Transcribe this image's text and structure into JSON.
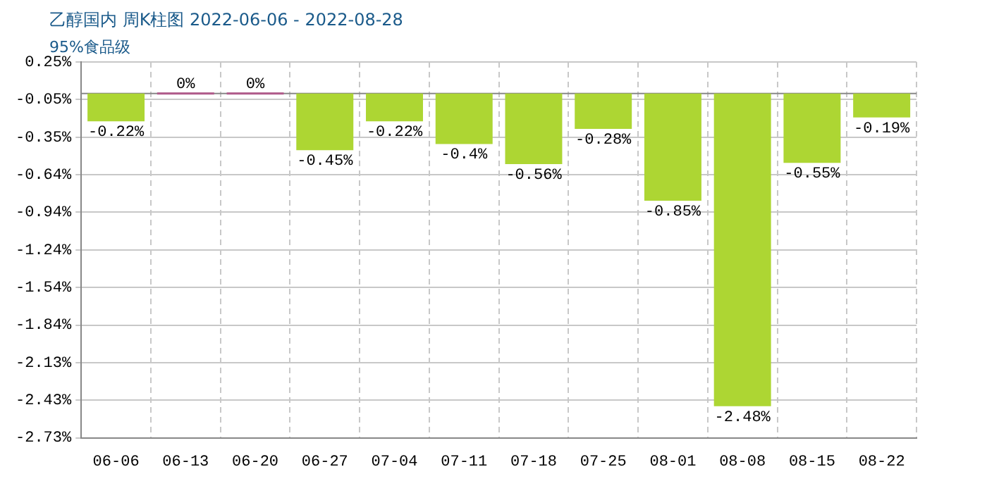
{
  "chart_data": {
    "type": "bar",
    "title": "乙醇国内 周K柱图 2022-06-06 - 2022-08-28",
    "subtitle": "95%食品级",
    "categories": [
      "06-06",
      "06-13",
      "06-20",
      "06-27",
      "07-04",
      "07-11",
      "07-18",
      "07-25",
      "08-01",
      "08-08",
      "08-15",
      "08-22"
    ],
    "values": [
      -0.22,
      0,
      0,
      -0.45,
      -0.22,
      -0.4,
      -0.56,
      -0.28,
      -0.85,
      -2.48,
      -0.55,
      -0.19
    ],
    "value_labels": [
      "-0.22%",
      "0%",
      "0%",
      "-0.45%",
      "-0.22%",
      "-0.4%",
      "-0.56%",
      "-0.28%",
      "-0.85%",
      "-2.48%",
      "-0.55%",
      "-0.19%"
    ],
    "colors": [
      "#add633",
      "#b05a8a",
      "#b05a8a",
      "#add633",
      "#add633",
      "#add633",
      "#add633",
      "#add633",
      "#add633",
      "#add633",
      "#add633",
      "#add633"
    ],
    "ylim": [
      -2.73,
      0.25
    ],
    "yticks": [
      {
        "value": 0.25,
        "label": "0.25%"
      },
      {
        "value": -0.048,
        "label": "-0.05%"
      },
      {
        "value": -0.346,
        "label": "-0.35%"
      },
      {
        "value": -0.644,
        "label": "-0.64%"
      },
      {
        "value": -0.942,
        "label": "-0.94%"
      },
      {
        "value": -1.24,
        "label": "-1.24%"
      },
      {
        "value": -1.538,
        "label": "-1.54%"
      },
      {
        "value": -1.836,
        "label": "-1.84%"
      },
      {
        "value": -2.134,
        "label": "-2.13%"
      },
      {
        "value": -2.432,
        "label": "-2.43%"
      },
      {
        "value": -2.73,
        "label": "-2.73%"
      }
    ],
    "grid": true,
    "legend": false
  }
}
